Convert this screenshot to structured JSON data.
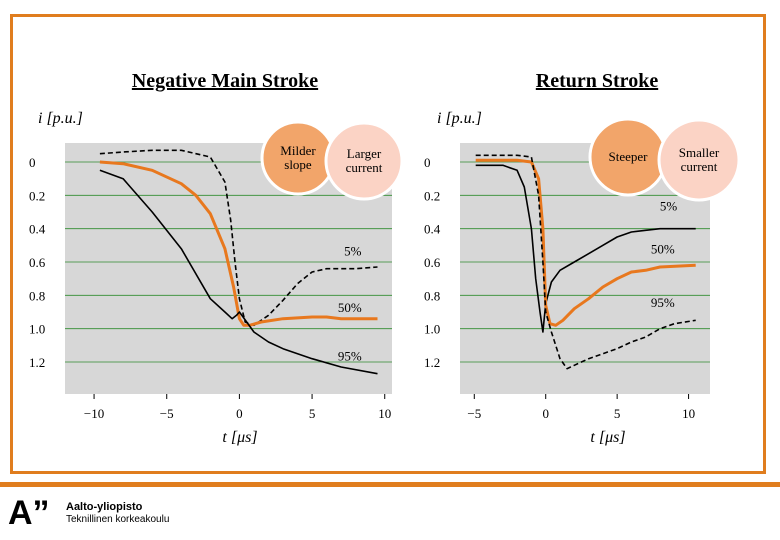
{
  "chart_data": [
    {
      "type": "line",
      "title": "Negative Main Stroke",
      "ylabel": "i [p.u.]",
      "xlabel": "t [μs]",
      "xlim": [
        -12,
        10.5
      ],
      "ylim": [
        -0.1,
        1.33
      ],
      "y_inverted": true,
      "x_ticks": [
        -10,
        -5,
        0,
        5,
        10
      ],
      "x_tick_labels": [
        "−10",
        "−5",
        "0",
        "5",
        "10"
      ],
      "y_ticks": [
        0,
        0.2,
        0.4,
        0.6,
        0.8,
        1.0,
        1.2
      ],
      "y_tick_labels": [
        "0",
        "0.2",
        "0.4",
        "0.6",
        "0.8",
        "1.0",
        "1.2"
      ],
      "grid": true,
      "series": [
        {
          "name": "5%",
          "style": "dashed",
          "color": "#000000",
          "x": [
            -9.6,
            -8,
            -6,
            -4,
            -2,
            -1,
            -0.6,
            -0.3,
            0,
            0.4,
            1,
            2,
            3,
            4,
            5,
            6,
            7,
            8,
            9.5
          ],
          "y": [
            -0.05,
            -0.06,
            -0.07,
            -0.07,
            -0.03,
            0.12,
            0.35,
            0.6,
            0.82,
            0.96,
            0.98,
            0.92,
            0.83,
            0.73,
            0.66,
            0.64,
            0.64,
            0.64,
            0.63
          ]
        },
        {
          "name": "50%",
          "style": "solid",
          "color": "#e8781e",
          "x": [
            -9.6,
            -8,
            -6,
            -4,
            -3,
            -2,
            -1,
            -0.4,
            0,
            0.3,
            0.7,
            1.5,
            3,
            5,
            6,
            7,
            8,
            9.5
          ],
          "y": [
            0,
            0.01,
            0.05,
            0.13,
            0.2,
            0.31,
            0.52,
            0.75,
            0.94,
            0.98,
            0.98,
            0.96,
            0.94,
            0.93,
            0.93,
            0.94,
            0.94,
            0.94
          ]
        },
        {
          "name": "95%",
          "style": "solid",
          "color": "#000000",
          "x": [
            -9.6,
            -8,
            -6,
            -4,
            -2,
            -1,
            -0.5,
            -0.2,
            0,
            0.5,
            1,
            2,
            3,
            5,
            7,
            9.5
          ],
          "y": [
            0.05,
            0.1,
            0.3,
            0.52,
            0.82,
            0.9,
            0.94,
            0.92,
            0.9,
            0.96,
            1.02,
            1.08,
            1.12,
            1.18,
            1.23,
            1.27
          ]
        }
      ],
      "annotations": [
        {
          "text": "5%",
          "x": 7.8,
          "y": 0.56
        },
        {
          "text": "50%",
          "x": 7.6,
          "y": 0.9
        },
        {
          "text": "95%",
          "x": 7.6,
          "y": 1.19
        }
      ],
      "callouts": [
        {
          "text": "Milder slope",
          "color": "#f2a56a"
        },
        {
          "text": "Larger current",
          "color": "#fbd3c5"
        }
      ]
    },
    {
      "type": "line",
      "title": "Return Stroke",
      "ylabel": "i [p.u.]",
      "xlabel": "t [μs]",
      "xlim": [
        -6,
        11.5
      ],
      "ylim": [
        -0.1,
        1.33
      ],
      "y_inverted": true,
      "x_ticks": [
        -5,
        0,
        5,
        10
      ],
      "x_tick_labels": [
        "−5",
        "0",
        "5",
        "10"
      ],
      "y_ticks": [
        0,
        0.2,
        0.4,
        0.6,
        0.8,
        1.0,
        1.2
      ],
      "y_tick_labels": [
        "0",
        "0.2",
        "0.4",
        "0.6",
        "0.8",
        "1.0",
        "1.2"
      ],
      "grid": true,
      "series": [
        {
          "name": "5%",
          "style": "solid",
          "color": "#000000",
          "x": [
            -4.9,
            -4,
            -3,
            -2,
            -1.5,
            -1,
            -0.7,
            -0.4,
            -0.2,
            0,
            0.4,
            1,
            2,
            3,
            4,
            5,
            6,
            7,
            8,
            10.5
          ],
          "y": [
            0.02,
            0.02,
            0.02,
            0.05,
            0.15,
            0.4,
            0.7,
            0.9,
            1.02,
            0.85,
            0.72,
            0.65,
            0.6,
            0.55,
            0.5,
            0.45,
            0.42,
            0.41,
            0.4,
            0.4
          ]
        },
        {
          "name": "50%",
          "style": "solid",
          "color": "#e8781e",
          "x": [
            -4.9,
            -4,
            -3,
            -2,
            -1,
            -0.5,
            -0.2,
            0,
            0.3,
            0.7,
            1.2,
            2,
            3,
            4,
            5,
            6,
            7,
            8,
            10.5
          ],
          "y": [
            -0.01,
            -0.01,
            -0.01,
            -0.01,
            0,
            0.1,
            0.4,
            0.86,
            0.97,
            0.98,
            0.95,
            0.88,
            0.82,
            0.75,
            0.7,
            0.66,
            0.65,
            0.63,
            0.62
          ]
        },
        {
          "name": "95%",
          "style": "dashed",
          "color": "#000000",
          "x": [
            -4.9,
            -4,
            -3,
            -2,
            -1,
            -0.5,
            -0.2,
            0,
            0.4,
            1,
            1.5,
            2,
            3,
            4,
            5,
            6,
            7,
            8,
            9,
            10.5
          ],
          "y": [
            -0.04,
            -0.04,
            -0.04,
            -0.04,
            -0.03,
            0.2,
            0.6,
            0.9,
            1.02,
            1.18,
            1.24,
            1.22,
            1.18,
            1.15,
            1.12,
            1.08,
            1.05,
            1.0,
            0.97,
            0.95
          ]
        }
      ],
      "annotations": [
        {
          "text": "5%",
          "x": 8.6,
          "y": 0.29
        },
        {
          "text": "50%",
          "x": 8.2,
          "y": 0.55
        },
        {
          "text": "95%",
          "x": 8.2,
          "y": 0.87
        }
      ],
      "callouts": [
        {
          "text": "Steeper",
          "color": "#f2a56a"
        },
        {
          "text": "Smaller current",
          "color": "#fbd3c5"
        }
      ]
    }
  ],
  "footer": {
    "logo_mark": "A”",
    "logo_name": "Aalto-yliopisto",
    "logo_sub": "Teknillinen korkeakoulu"
  }
}
